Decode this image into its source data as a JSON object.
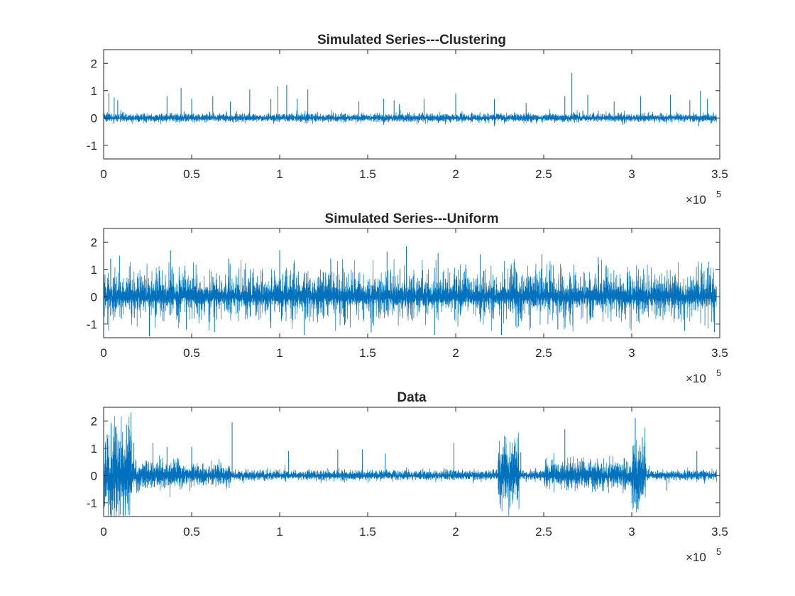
{
  "colors": {
    "series": "#0072BD",
    "axes": "#262626",
    "background": "#ffffff"
  },
  "chart_data": [
    {
      "type": "line",
      "title": "Simulated Series---Clustering",
      "xlabel": "",
      "ylabel": "",
      "xlim": [
        0,
        350000
      ],
      "ylim": [
        -1.5,
        2.5
      ],
      "xticks": [
        0,
        0.5,
        1,
        1.5,
        2,
        2.5,
        3,
        3.5
      ],
      "xtick_labels": [
        "0",
        "0.5",
        "1",
        "1.5",
        "2",
        "2.5",
        "3",
        "3.5"
      ],
      "yticks": [
        -1,
        0,
        1,
        2
      ],
      "ytick_labels": [
        "-1",
        "0",
        "1",
        "2"
      ],
      "x_exponent_label": "×10",
      "x_exponent_power": "5",
      "grid": false,
      "noise_level": 0.06,
      "spikes": [
        {
          "x": 3000,
          "y": 0.9
        },
        {
          "x": 6000,
          "y": 0.75
        },
        {
          "x": 8000,
          "y": 0.65
        },
        {
          "x": 36000,
          "y": 0.8
        },
        {
          "x": 44000,
          "y": 1.1
        },
        {
          "x": 50000,
          "y": 0.7
        },
        {
          "x": 62000,
          "y": 0.8
        },
        {
          "x": 72000,
          "y": 0.6
        },
        {
          "x": 83000,
          "y": 1.05
        },
        {
          "x": 95000,
          "y": 0.7
        },
        {
          "x": 99000,
          "y": 1.15
        },
        {
          "x": 104000,
          "y": 1.2
        },
        {
          "x": 110000,
          "y": 0.7
        },
        {
          "x": 116000,
          "y": 1.05
        },
        {
          "x": 145000,
          "y": 0.6
        },
        {
          "x": 159000,
          "y": 0.7
        },
        {
          "x": 165000,
          "y": 0.65
        },
        {
          "x": 168000,
          "y": 0.5
        },
        {
          "x": 182000,
          "y": 0.7
        },
        {
          "x": 200000,
          "y": 0.9
        },
        {
          "x": 222000,
          "y": 0.7
        },
        {
          "x": 240000,
          "y": 0.55
        },
        {
          "x": 262000,
          "y": 0.8
        },
        {
          "x": 266000,
          "y": 1.65
        },
        {
          "x": 275000,
          "y": 0.85
        },
        {
          "x": 290000,
          "y": 0.6
        },
        {
          "x": 305000,
          "y": 0.8
        },
        {
          "x": 322000,
          "y": 0.85
        },
        {
          "x": 333000,
          "y": 0.65
        },
        {
          "x": 339000,
          "y": 1.0
        },
        {
          "x": 343000,
          "y": 0.7
        }
      ],
      "dips": [
        {
          "x": 159000,
          "y": -0.25
        },
        {
          "x": 222000,
          "y": -0.3
        },
        {
          "x": 295000,
          "y": -0.25
        },
        {
          "x": 338000,
          "y": -0.3
        },
        {
          "x": 345000,
          "y": -0.2
        }
      ]
    },
    {
      "type": "line",
      "title": "Simulated Series---Uniform",
      "xlabel": "",
      "ylabel": "",
      "xlim": [
        0,
        350000
      ],
      "ylim": [
        -1.5,
        2.5
      ],
      "xticks": [
        0,
        0.5,
        1,
        1.5,
        2,
        2.5,
        3,
        3.5
      ],
      "xtick_labels": [
        "0",
        "0.5",
        "1",
        "1.5",
        "2",
        "2.5",
        "3",
        "3.5"
      ],
      "yticks": [
        -1,
        0,
        1,
        2
      ],
      "ytick_labels": [
        "-1",
        "0",
        "1",
        "2"
      ],
      "x_exponent_label": "×10",
      "x_exponent_power": "5",
      "grid": false,
      "noise_level": 0.12,
      "spikes": [
        {
          "x": 4000,
          "y": 1.4
        },
        {
          "x": 9000,
          "y": 1.5
        },
        {
          "x": 38000,
          "y": 1.7
        },
        {
          "x": 71000,
          "y": 1.4
        },
        {
          "x": 100000,
          "y": 1.7
        },
        {
          "x": 129000,
          "y": 1.4
        },
        {
          "x": 161000,
          "y": 1.65
        },
        {
          "x": 172000,
          "y": 1.85
        },
        {
          "x": 190000,
          "y": 1.6
        },
        {
          "x": 214000,
          "y": 1.55
        },
        {
          "x": 249000,
          "y": 1.55
        },
        {
          "x": 281000,
          "y": 1.45
        },
        {
          "x": 343000,
          "y": 1.05
        }
      ],
      "dips": [
        {
          "x": 26000,
          "y": -1.45
        },
        {
          "x": 47000,
          "y": -1.2
        },
        {
          "x": 63000,
          "y": -1.3
        },
        {
          "x": 95000,
          "y": -1.15
        },
        {
          "x": 114000,
          "y": -1.4
        },
        {
          "x": 152000,
          "y": -1.3
        },
        {
          "x": 188000,
          "y": -1.4
        },
        {
          "x": 226000,
          "y": -1.4
        },
        {
          "x": 258000,
          "y": -1.2
        },
        {
          "x": 330000,
          "y": -1.25
        },
        {
          "x": 347000,
          "y": -1.3
        }
      ],
      "spike_density": 0.55,
      "spike_max": 1.3,
      "dip_max": 1.2
    },
    {
      "type": "line",
      "title": "Data",
      "xlabel": "",
      "ylabel": "",
      "xlim": [
        0,
        350000
      ],
      "ylim": [
        -1.5,
        2.5
      ],
      "xticks": [
        0,
        0.5,
        1,
        1.5,
        2,
        2.5,
        3,
        3.5
      ],
      "xtick_labels": [
        "0",
        "0.5",
        "1",
        "1.5",
        "2",
        "2.5",
        "3",
        "3.5"
      ],
      "yticks": [
        -1,
        0,
        1,
        2
      ],
      "ytick_labels": [
        "-1",
        "0",
        "1",
        "2"
      ],
      "x_exponent_label": "×10",
      "x_exponent_power": "5",
      "grid": false,
      "noise_level": 0.07,
      "bursts": [
        {
          "x_start": 0,
          "x_end": 16000,
          "amplitude": 0.7
        },
        {
          "x_start": 16000,
          "x_end": 45000,
          "amplitude": 0.2
        },
        {
          "x_start": 45000,
          "x_end": 72000,
          "amplitude": 0.15
        },
        {
          "x_start": 224000,
          "x_end": 236000,
          "amplitude": 0.45
        },
        {
          "x_start": 250000,
          "x_end": 300000,
          "amplitude": 0.2
        },
        {
          "x_start": 300000,
          "x_end": 308000,
          "amplitude": 0.45
        }
      ],
      "spikes": [
        {
          "x": 2000,
          "y": 1.5
        },
        {
          "x": 7000,
          "y": 1.8
        },
        {
          "x": 13000,
          "y": 1.85
        },
        {
          "x": 17000,
          "y": 1.2
        },
        {
          "x": 28000,
          "y": 1.2
        },
        {
          "x": 36000,
          "y": 1.05
        },
        {
          "x": 50000,
          "y": 1.05
        },
        {
          "x": 73000,
          "y": 1.95
        },
        {
          "x": 105000,
          "y": 0.9
        },
        {
          "x": 133000,
          "y": 0.95
        },
        {
          "x": 147000,
          "y": 0.95
        },
        {
          "x": 160000,
          "y": 0.8
        },
        {
          "x": 199000,
          "y": 1.2
        },
        {
          "x": 227000,
          "y": 1.05
        },
        {
          "x": 237000,
          "y": 0.85
        },
        {
          "x": 262000,
          "y": 1.7
        },
        {
          "x": 302000,
          "y": 2.1
        },
        {
          "x": 306000,
          "y": 1.4
        },
        {
          "x": 337000,
          "y": 0.9
        }
      ],
      "dips": [
        {
          "x": 8000,
          "y": -1.05
        },
        {
          "x": 14000,
          "y": -1.25
        },
        {
          "x": 20000,
          "y": -0.6
        },
        {
          "x": 72000,
          "y": -0.25
        },
        {
          "x": 228000,
          "y": -0.4
        },
        {
          "x": 305000,
          "y": -0.6
        },
        {
          "x": 320000,
          "y": -0.55
        }
      ]
    }
  ]
}
